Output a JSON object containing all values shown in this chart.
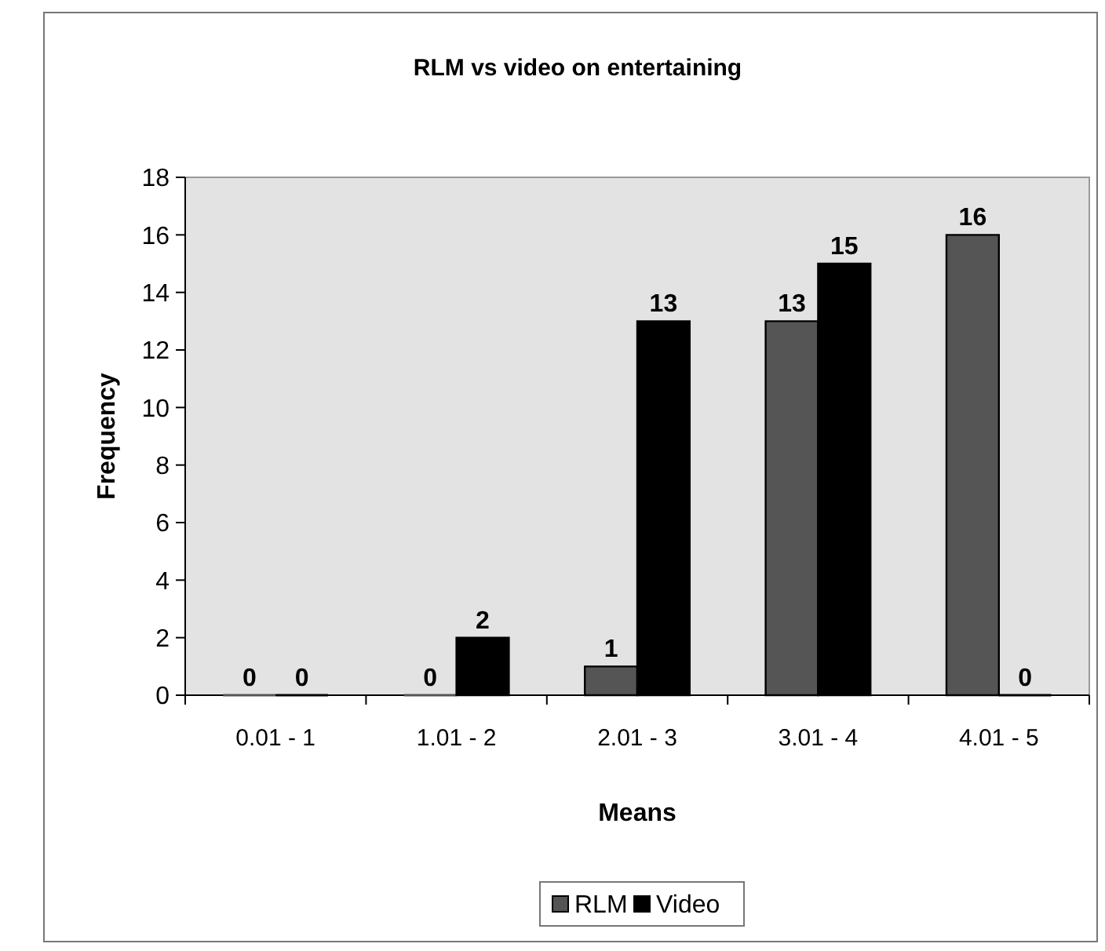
{
  "chart_data": {
    "type": "bar",
    "title": "RLM vs video on entertaining",
    "xlabel": "Means",
    "ylabel": "Frequency",
    "categories": [
      "0.01 - 1",
      "1.01 - 2",
      "2.01 - 3",
      "3.01 - 4",
      "4.01 - 5"
    ],
    "series": [
      {
        "name": "RLM",
        "color": "#555555",
        "values": [
          0,
          0,
          1,
          13,
          16
        ]
      },
      {
        "name": "Video",
        "color": "#000000",
        "values": [
          0,
          2,
          13,
          15,
          0
        ]
      }
    ],
    "ylim": [
      0,
      18
    ],
    "yticks": [
      0,
      2,
      4,
      6,
      8,
      10,
      12,
      14,
      16,
      18
    ],
    "grid": false,
    "legend": "bottom",
    "data_labels": true
  }
}
